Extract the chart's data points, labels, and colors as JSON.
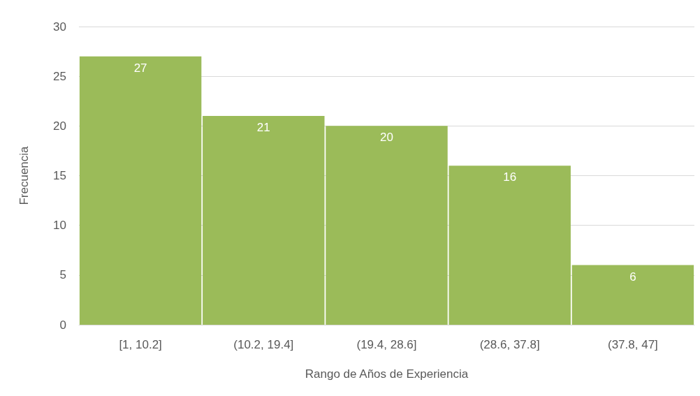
{
  "chart_data": {
    "type": "bar",
    "xlabel": "Rango de Años de Experiencia",
    "ylabel": "Frecuencia",
    "categories": [
      "[1, 10.2]",
      "(10.2, 19.4]",
      "(19.4, 28.6]",
      "(28.6, 37.8]",
      "(37.8, 47]"
    ],
    "values": [
      27,
      21,
      20,
      16,
      6
    ],
    "color": "#9bbb59",
    "ylim": [
      0,
      30
    ],
    "yticks": [
      0,
      5,
      10,
      15,
      20,
      25,
      30
    ],
    "grid": "y",
    "data_labels": true
  }
}
